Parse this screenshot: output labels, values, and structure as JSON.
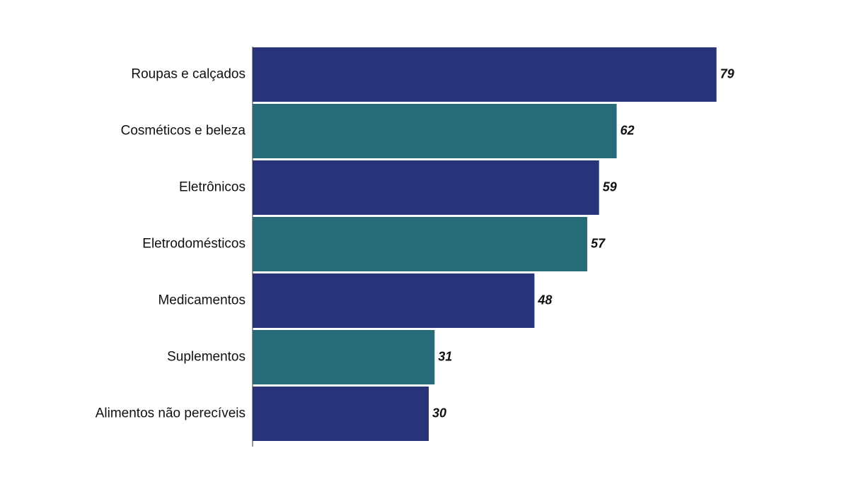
{
  "chart_data": {
    "type": "barh",
    "categories": [
      "Roupas e calçados",
      "Cosméticos e beleza",
      "Eletrônicos",
      "Eletrodomésticos",
      "Medicamentos",
      "Suplementos",
      "Alimentos não perecíveis"
    ],
    "values": [
      79,
      62,
      59,
      57,
      48,
      31,
      30
    ],
    "colors": [
      "#283479",
      "#276b78",
      "#283479",
      "#276b78",
      "#283479",
      "#276b78",
      "#283479"
    ]
  }
}
